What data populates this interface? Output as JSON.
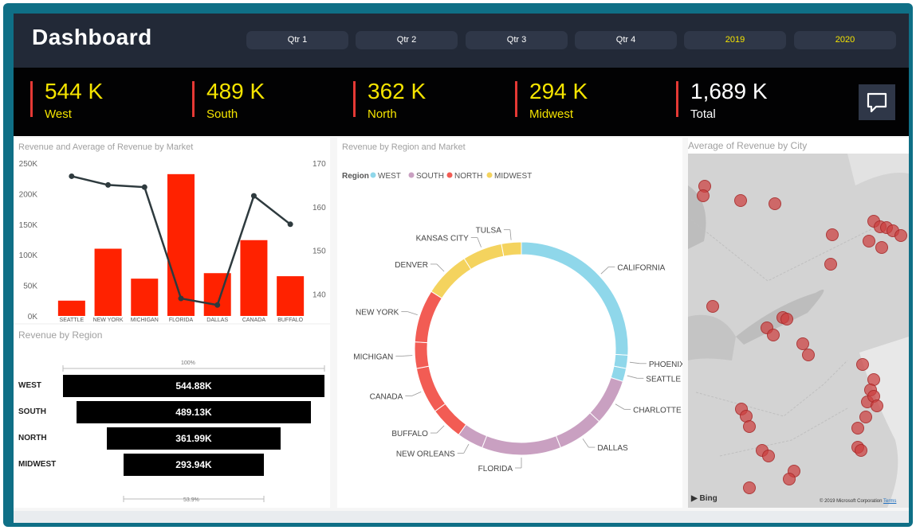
{
  "header": {
    "title": "Dashboard",
    "filters": [
      "Qtr 1",
      "Qtr 2",
      "Qtr 3",
      "Qtr 4",
      "2019",
      "2020"
    ]
  },
  "kpis": [
    {
      "value": "544 K",
      "label": "West"
    },
    {
      "value": "489 K",
      "label": "South"
    },
    {
      "value": "362 K",
      "label": "North"
    },
    {
      "value": "294 K",
      "label": "Midwest"
    },
    {
      "value": "1,689 K",
      "label": "Total"
    }
  ],
  "chat_icon": "chat-bubble-icon",
  "colors": {
    "accent_yellow": "#f5e400",
    "kpi_line": "#e53935",
    "bar_red": "#ff2200",
    "line_dark": "#2e3a3e",
    "west": "#8fd7ea",
    "south": "#c9a0c1",
    "north": "#f25c54",
    "midwest": "#f4d35e"
  },
  "panels": {
    "market_title": "Revenue and Average of Revenue by Market",
    "region_title": "Revenue by Region",
    "donut_title": "Revenue by Region and Market",
    "map_title": "Average of Revenue by City",
    "map_attribution": "© 2019 Microsoft Corporation",
    "map_terms": "Terms",
    "bing_label": "Bing"
  },
  "chart_data": [
    {
      "type": "bar",
      "title": "Revenue and Average of Revenue by Market",
      "categories": [
        "SEATTLE",
        "NEW YORK",
        "MICHIGAN",
        "FLORIDA",
        "DALLAS",
        "CANADA",
        "BUFFALO"
      ],
      "series": [
        {
          "values": [
            25000,
            110000,
            61000,
            232000,
            70000,
            124000,
            65000
          ]
        },
        {
          "values": [
            167,
            165,
            164.5,
            139,
            137.5,
            162.5,
            156
          ]
        }
      ],
      "ylim": [
        0,
        250000
      ],
      "y2lim": [
        135,
        170
      ],
      "y_ticks": [
        "250K",
        "200K",
        "150K",
        "100K",
        "50K",
        "0K"
      ],
      "y2_ticks": [
        "170",
        "160",
        "150",
        "140"
      ]
    },
    {
      "type": "bar",
      "title": "Revenue by Region",
      "categories": [
        "WEST",
        "SOUTH",
        "NORTH",
        "MIDWEST"
      ],
      "values": [
        544880,
        489130,
        361990,
        293940
      ],
      "data_labels": [
        "544.88K",
        "489.13K",
        "361.99K",
        "293.94K"
      ],
      "top_label": "100%",
      "bottom_label": "53.9%"
    },
    {
      "type": "pie",
      "title": "Revenue by Region and Market",
      "legend_title": "Region",
      "legend": [
        "WEST",
        "SOUTH",
        "NORTH",
        "MIDWEST"
      ],
      "slices": [
        {
          "label": "CALIFORNIA",
          "region": "WEST",
          "value": 26
        },
        {
          "label": "PHOENIX",
          "region": "WEST",
          "value": 2
        },
        {
          "label": "SEATTLE",
          "region": "WEST",
          "value": 2
        },
        {
          "label": "CHARLOTTE",
          "region": "SOUTH",
          "value": 7
        },
        {
          "label": "DALLAS",
          "region": "SOUTH",
          "value": 7
        },
        {
          "label": "FLORIDA",
          "region": "SOUTH",
          "value": 12
        },
        {
          "label": "NEW ORLEANS",
          "region": "SOUTH",
          "value": 4
        },
        {
          "label": "BUFFALO",
          "region": "NORTH",
          "value": 5
        },
        {
          "label": "CANADA",
          "region": "NORTH",
          "value": 7
        },
        {
          "label": "MICHIGAN",
          "region": "NORTH",
          "value": 4
        },
        {
          "label": "NEW YORK",
          "region": "NORTH",
          "value": 8
        },
        {
          "label": "DENVER",
          "region": "MIDWEST",
          "value": 7
        },
        {
          "label": "KANSAS CITY",
          "region": "MIDWEST",
          "value": 6
        },
        {
          "label": "TULSA",
          "region": "MIDWEST",
          "value": 3
        }
      ]
    }
  ]
}
